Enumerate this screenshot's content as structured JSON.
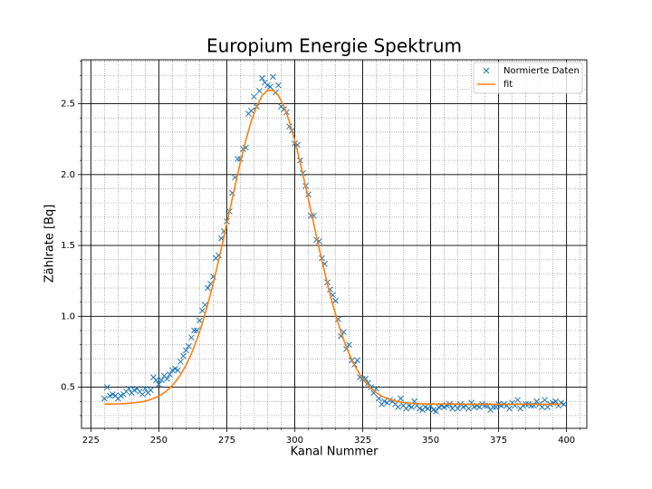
{
  "chart_data": {
    "type": "line",
    "title": "Europium Energie Spektrum",
    "x_label": "Kanal Nummer",
    "y_label": "Zählrate [Bq]",
    "xlim": [
      221.55,
      407.45
    ],
    "ylim": [
      0.21,
      2.81
    ],
    "xticks": [
      225,
      250,
      275,
      300,
      325,
      350,
      375,
      400
    ],
    "yticks": [
      0.5,
      {
        "value": 1.0,
        "label": "1.0"
      },
      1.5,
      {
        "value": 2.0,
        "label": "2.0"
      },
      2.5
    ],
    "xminorticks": [
      230,
      235,
      240,
      245,
      255,
      260,
      265,
      270,
      280,
      285,
      290,
      295,
      305,
      310,
      315,
      320,
      330,
      335,
      340,
      345,
      355,
      360,
      365,
      370,
      380,
      385,
      390,
      395,
      405
    ],
    "yminorticks": [
      0.3,
      0.4,
      0.6,
      0.7,
      0.8,
      0.9,
      1.1,
      1.2,
      1.3,
      1.4,
      1.6,
      1.7,
      1.8,
      1.9,
      2.1,
      2.2,
      2.3,
      2.4,
      2.6,
      2.7,
      2.8
    ],
    "grid": true,
    "minor_grid": true,
    "legend": "upper right",
    "series": [
      {
        "name": "Normierte Daten",
        "color": "#1f77b4",
        "marker": "x",
        "x": [
          230,
          231,
          232,
          233,
          234,
          235,
          236,
          237,
          238,
          239,
          240,
          241,
          242,
          243,
          244,
          245,
          246,
          247,
          248,
          249,
          250,
          251,
          252,
          253,
          254,
          255,
          256,
          257,
          258,
          259,
          260,
          261,
          262,
          263,
          264,
          265,
          266,
          267,
          268,
          269,
          270,
          271,
          272,
          273,
          274,
          275,
          276,
          277,
          278,
          279,
          280,
          281,
          282,
          283,
          284,
          285,
          286,
          287,
          288,
          289,
          290,
          291,
          292,
          293,
          294,
          295,
          296,
          297,
          298,
          299,
          300,
          301,
          302,
          303,
          304,
          305,
          306,
          307,
          308,
          309,
          310,
          311,
          312,
          313,
          314,
          315,
          316,
          317,
          318,
          319,
          320,
          321,
          322,
          323,
          324,
          325,
          326,
          327,
          328,
          329,
          330,
          331,
          332,
          333,
          334,
          335,
          336,
          337,
          338,
          339,
          340,
          341,
          342,
          343,
          344,
          345,
          346,
          347,
          348,
          349,
          350,
          351,
          352,
          353,
          354,
          355,
          356,
          357,
          358,
          359,
          360,
          361,
          362,
          363,
          364,
          365,
          366,
          367,
          368,
          369,
          370,
          371,
          372,
          373,
          374,
          375,
          376,
          377,
          378,
          379,
          380,
          381,
          382,
          383,
          384,
          385,
          386,
          387,
          388,
          389,
          390,
          391,
          392,
          393,
          394,
          395,
          396,
          397,
          398,
          399
        ],
        "values": [
          0.42,
          0.5,
          0.44,
          0.45,
          0.44,
          0.42,
          0.44,
          0.45,
          0.47,
          0.49,
          0.46,
          0.48,
          0.49,
          0.47,
          0.45,
          0.49,
          0.46,
          0.48,
          0.57,
          0.55,
          0.52,
          0.55,
          0.58,
          0.56,
          0.59,
          0.62,
          0.63,
          0.62,
          0.68,
          0.72,
          0.76,
          0.79,
          0.85,
          0.9,
          0.9,
          0.97,
          1.04,
          1.08,
          1.2,
          1.23,
          1.28,
          1.41,
          1.43,
          1.55,
          1.6,
          1.67,
          1.74,
          1.87,
          1.98,
          2.11,
          2.11,
          2.18,
          2.19,
          2.43,
          2.45,
          2.55,
          2.48,
          2.59,
          2.68,
          2.65,
          2.63,
          2.62,
          2.69,
          2.58,
          2.63,
          2.48,
          2.46,
          2.44,
          2.34,
          2.31,
          2.22,
          2.21,
          2.1,
          2.01,
          1.92,
          1.86,
          1.71,
          1.71,
          1.54,
          1.53,
          1.41,
          1.37,
          1.24,
          1.19,
          1.15,
          1.11,
          0.98,
          0.86,
          0.89,
          0.77,
          0.8,
          0.69,
          0.66,
          0.69,
          0.57,
          0.56,
          0.56,
          0.53,
          0.5,
          0.46,
          0.49,
          0.42,
          0.38,
          0.4,
          0.39,
          0.41,
          0.4,
          0.38,
          0.36,
          0.42,
          0.37,
          0.35,
          0.37,
          0.36,
          0.4,
          0.37,
          0.35,
          0.34,
          0.36,
          0.35,
          0.37,
          0.34,
          0.33,
          0.36,
          0.37,
          0.36,
          0.37,
          0.38,
          0.35,
          0.37,
          0.35,
          0.38,
          0.36,
          0.37,
          0.35,
          0.39,
          0.36,
          0.37,
          0.36,
          0.38,
          0.37,
          0.37,
          0.34,
          0.36,
          0.36,
          0.38,
          0.37,
          0.38,
          0.37,
          0.35,
          0.39,
          0.37,
          0.41,
          0.35,
          0.37,
          0.38,
          0.38,
          0.37,
          0.37,
          0.4,
          0.38,
          0.36,
          0.41,
          0.36,
          0.38,
          0.39,
          0.4,
          0.37,
          0.39,
          0.38
        ]
      },
      {
        "name": "fit",
        "color": "#ff7f0e",
        "marker": "line",
        "x": [
          230,
          232,
          234,
          236,
          238,
          240,
          242,
          244,
          246,
          248,
          250,
          252,
          254,
          256,
          258,
          260,
          262,
          264,
          266,
          268,
          270,
          272,
          274,
          276,
          278,
          280,
          282,
          284,
          286,
          288,
          290,
          292,
          294,
          296,
          298,
          300,
          302,
          304,
          306,
          308,
          310,
          312,
          314,
          316,
          318,
          320,
          322,
          324,
          326,
          328,
          330,
          332,
          334,
          336,
          338,
          340,
          342,
          344,
          346,
          348,
          350,
          352,
          354,
          356,
          358,
          360,
          362,
          364,
          366,
          368,
          370,
          372,
          374,
          376,
          378,
          380,
          382,
          384,
          386,
          388,
          390,
          392,
          394,
          396,
          398
        ],
        "values": [
          0.381,
          0.381,
          0.382,
          0.383,
          0.385,
          0.388,
          0.392,
          0.398,
          0.407,
          0.42,
          0.437,
          0.461,
          0.493,
          0.535,
          0.588,
          0.655,
          0.737,
          0.835,
          0.95,
          1.084,
          1.23,
          1.393,
          1.565,
          1.741,
          1.917,
          2.087,
          2.242,
          2.376,
          2.483,
          2.557,
          2.595,
          2.595,
          2.557,
          2.483,
          2.376,
          2.242,
          2.087,
          1.917,
          1.741,
          1.565,
          1.393,
          1.23,
          1.084,
          0.95,
          0.835,
          0.737,
          0.655,
          0.588,
          0.535,
          0.493,
          0.461,
          0.437,
          0.42,
          0.407,
          0.398,
          0.392,
          0.388,
          0.385,
          0.383,
          0.382,
          0.381,
          0.381,
          0.381,
          0.381,
          0.381,
          0.381,
          0.38,
          0.38,
          0.38,
          0.38,
          0.38,
          0.38,
          0.38,
          0.38,
          0.38,
          0.38,
          0.38,
          0.38,
          0.38,
          0.38,
          0.38,
          0.38,
          0.38,
          0.38,
          0.38
        ]
      }
    ]
  }
}
